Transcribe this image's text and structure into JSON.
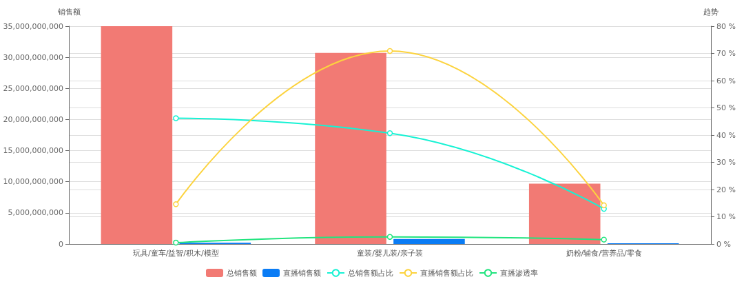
{
  "chart_data": {
    "type": "bar",
    "ylabel": "销售额",
    "y2label": "趋势",
    "categories": [
      "玩具/童车/益智/积木/模型",
      "童装/婴儿装/亲子装",
      "奶粉/辅食/营养品/零食"
    ],
    "series": [
      {
        "name": "总销售额",
        "color": "#f27a74",
        "values": [
          35000000000,
          30700000000,
          9700000000
        ]
      },
      {
        "name": "直播销售额",
        "color": "#0a7cf5",
        "values": [
          200000000,
          800000000,
          100000000
        ]
      },
      {
        "name": "总销售额占比",
        "type": "line",
        "axis": "y2",
        "color": "#16f2d4",
        "values": [
          46.2,
          40.7,
          12.9
        ]
      },
      {
        "name": "直播销售额占比",
        "type": "line",
        "axis": "y2",
        "color": "#fcd33e",
        "values": [
          14.6,
          70.9,
          14.2
        ]
      },
      {
        "name": "直播渗透率",
        "type": "line",
        "axis": "y2",
        "color": "#21e47e",
        "values": [
          0.5,
          2.6,
          1.6
        ]
      }
    ],
    "ylim": [
      0,
      35000000000
    ],
    "yticks": [
      0,
      {
        "value": 5000000000,
        "label": "5,000,000,000"
      },
      {
        "value": 10000000000,
        "label": "10,000,000,000"
      },
      {
        "value": 15000000000,
        "label": "15,000,000,000"
      },
      {
        "value": 20000000000,
        "label": "20,000,000,000"
      },
      {
        "value": 25000000000,
        "label": "25,000,000,000"
      },
      {
        "value": 30000000000,
        "label": "30,000,000,000"
      },
      {
        "value": 35000000000,
        "label": "35,000,000,000"
      }
    ],
    "y2lim": [
      0,
      80
    ],
    "y2ticks": [
      {
        "value": 0,
        "label": "0 %"
      },
      {
        "value": 10,
        "label": "10 %"
      },
      {
        "value": 20,
        "label": "20 %"
      },
      {
        "value": 30,
        "label": "30 %"
      },
      {
        "value": 40,
        "label": "40 %"
      },
      {
        "value": 50,
        "label": "50 %"
      },
      {
        "value": 60,
        "label": "60 %"
      },
      {
        "value": 70,
        "label": "70 %"
      },
      {
        "value": 80,
        "label": "80 %"
      }
    ],
    "grid": true,
    "legend": "bottom",
    "marker": "circle"
  }
}
